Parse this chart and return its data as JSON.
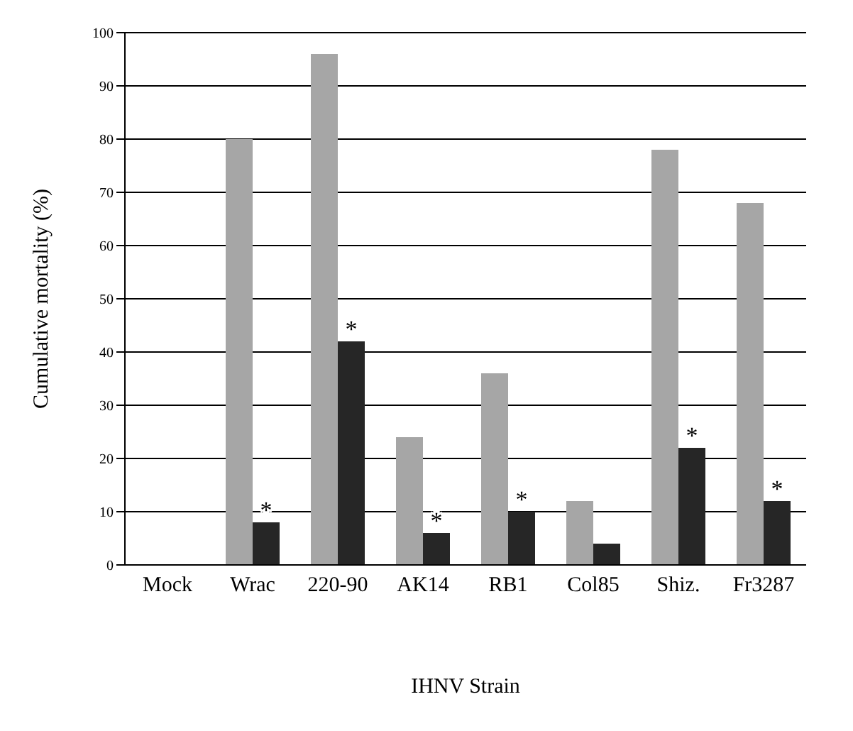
{
  "chart_data": {
    "type": "bar",
    "xlabel": "IHNV Strain",
    "ylabel": "Cumulative mortality (%)",
    "categories": [
      "Mock",
      "Wrac",
      "220-90",
      "AK14",
      "RB1",
      "Col85",
      "Shiz.",
      "Fr3287"
    ],
    "series": [
      {
        "color": "#a6a6a6",
        "values": [
          0,
          80,
          96,
          24,
          36,
          12,
          78,
          68
        ]
      },
      {
        "color": "#262626",
        "values": [
          0,
          8,
          42,
          6,
          10,
          4,
          22,
          12
        ]
      }
    ],
    "ylim": [
      0,
      100
    ],
    "yticks": [
      0,
      10,
      20,
      30,
      40,
      50,
      60,
      70,
      80,
      90,
      100
    ],
    "grid": "y",
    "annotations": [
      {
        "text": "*",
        "x": "Wrac",
        "y": 8
      },
      {
        "text": "*",
        "x": "220-90",
        "y": 42
      },
      {
        "text": "*",
        "x": "AK14",
        "y": 6
      },
      {
        "text": "*",
        "x": "RB1",
        "y": 10
      },
      {
        "text": "*",
        "x": "Shiz.",
        "y": 22
      },
      {
        "text": "*",
        "x": "Fr3287",
        "y": 12
      }
    ]
  }
}
